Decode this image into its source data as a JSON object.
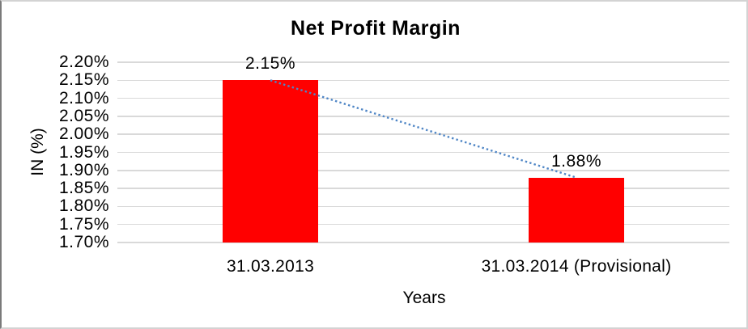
{
  "chart_data": {
    "type": "bar",
    "title": "Net Profit Margin",
    "xlabel": "Years",
    "ylabel": "IN (%)",
    "categories": [
      "31.03.2013",
      "31.03.2014 (Provisional)"
    ],
    "values": [
      2.15,
      1.88
    ],
    "data_labels": [
      "2.15%",
      "1.88%"
    ],
    "ylim": [
      1.7,
      2.2
    ],
    "ytick_step": 0.05,
    "yticks": [
      "2.20%",
      "2.15%",
      "2.10%",
      "2.05%",
      "2.00%",
      "1.95%",
      "1.90%",
      "1.85%",
      "1.80%",
      "1.75%",
      "1.70%"
    ],
    "grid": true,
    "legend": "none",
    "bar_color": "#FF0000",
    "gridline_color": "#D9D9D9",
    "trendline": {
      "type": "linear",
      "style": "dotted",
      "color": "#4F86C6",
      "from_value": 2.15,
      "to_value": 1.88
    }
  }
}
